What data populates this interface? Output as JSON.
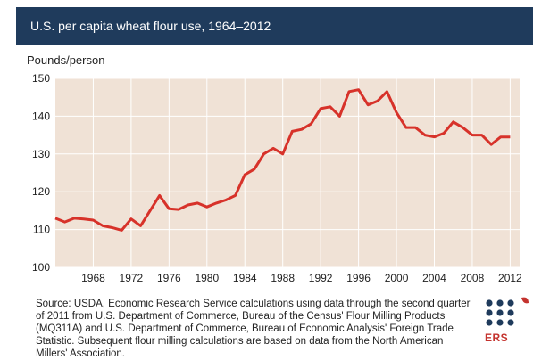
{
  "header": {
    "title": "U.S. per capita wheat flour use, 1964–2012"
  },
  "source_note": "Source: USDA, Economic Research Service calculations using data through the second quarter of 2011 from U.S. Department of Commerce, Bureau of the Census' Flour Milling Products (MQ311A) and U.S. Department of Commerce, Bureau of Economic Analysis' Foreign Trade Statistic. Subsequent flour milling calculations are based on data from the North American Millers' Association.",
  "logo_text": "ERS",
  "colors": {
    "title_bg": "#1f3b5c",
    "plot_bg": "#f0e2d6",
    "line": "#d7322a",
    "logo_dots": "#1f3b5c",
    "logo_accent": "#c4332e"
  },
  "chart_data": {
    "type": "line",
    "title": "U.S. per capita wheat flour use, 1964–2012",
    "ylabel": "Pounds/person",
    "xlabel": "",
    "xlim": [
      1964,
      2013
    ],
    "ylim": [
      100,
      150
    ],
    "xticks": [
      1968,
      1972,
      1976,
      1980,
      1984,
      1988,
      1992,
      1996,
      2000,
      2004,
      2008,
      2012
    ],
    "yticks": [
      100,
      110,
      120,
      130,
      140,
      150
    ],
    "grid": true,
    "series": [
      {
        "x": [
          1964,
          1965,
          1966,
          1967,
          1968,
          1969,
          1970,
          1971,
          1972,
          1973,
          1974,
          1975,
          1976,
          1977,
          1978,
          1979,
          1980,
          1981,
          1982,
          1983,
          1984,
          1985,
          1986,
          1987,
          1988,
          1989,
          1990,
          1991,
          1992,
          1993,
          1994,
          1995,
          1996,
          1997,
          1998,
          1999,
          2000,
          2001,
          2002,
          2003,
          2004,
          2005,
          2006,
          2007,
          2008,
          2009,
          2010,
          2011,
          2012
        ],
        "y": [
          113,
          112,
          113,
          112.8,
          112.5,
          111,
          110.5,
          109.8,
          112.8,
          111,
          115,
          119,
          115.5,
          115.3,
          116.5,
          117,
          116,
          117,
          117.8,
          119,
          124.5,
          126,
          130,
          131.5,
          130,
          136,
          136.5,
          138,
          142,
          142.5,
          140,
          146.5,
          147,
          143,
          144,
          146.5,
          141,
          137,
          137,
          135,
          134.5,
          135.5,
          138.5,
          137,
          135,
          135,
          132.5,
          134.5,
          134.5
        ]
      }
    ]
  }
}
